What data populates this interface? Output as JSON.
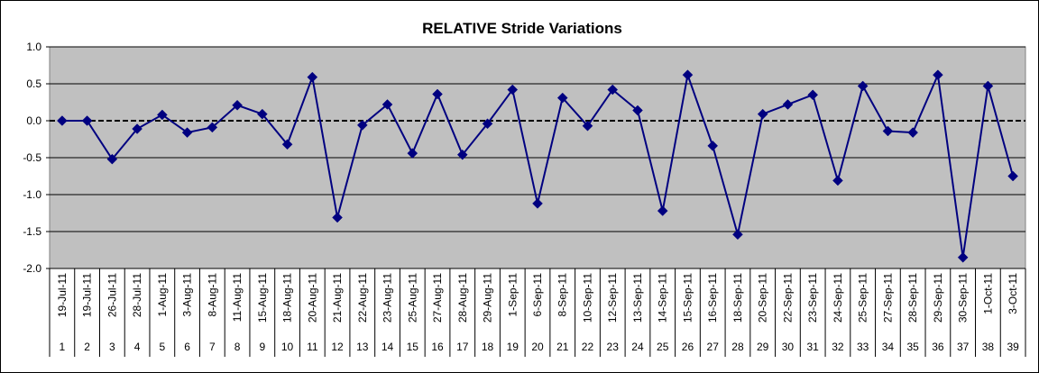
{
  "chart_data": {
    "type": "line",
    "title": "RELATIVE Stride Variations",
    "xlabel": "",
    "ylabel": "",
    "ylim": [
      -2.0,
      1.0
    ],
    "y_ticks": [
      "1.0",
      "0.5",
      "0.0",
      "-0.5",
      "-1.0",
      "-1.5",
      "-2.0"
    ],
    "y_tick_values": [
      1.0,
      0.5,
      0.0,
      -0.5,
      -1.0,
      -1.5,
      -2.0
    ],
    "grid": true,
    "legend": "none",
    "colors": {
      "plot_background": "#c0c0c0",
      "series": "#000080",
      "gridline": "#000000"
    },
    "marker": "diamond",
    "dates": [
      "19-Jul-11",
      "19-Jul-11",
      "26-Jul-11",
      "28-Jul-11",
      "1-Aug-11",
      "3-Aug-11",
      "8-Aug-11",
      "11-Aug-11",
      "15-Aug-11",
      "18-Aug-11",
      "20-Aug-11",
      "21-Aug-11",
      "22-Aug-11",
      "23-Aug-11",
      "25-Aug-11",
      "27-Aug-11",
      "28-Aug-11",
      "29-Aug-11",
      "1-Sep-11",
      "6-Sep-11",
      "8-Sep-11",
      "10-Sep-11",
      "12-Sep-11",
      "13-Sep-11",
      "14-Sep-11",
      "15-Sep-11",
      "16-Sep-11",
      "18-Sep-11",
      "20-Sep-11",
      "22-Sep-11",
      "23-Sep-11",
      "24-Sep-11",
      "25-Sep-11",
      "27-Sep-11",
      "28-Sep-11",
      "29-Sep-11",
      "30-Sep-11",
      "1-Oct-11",
      "3-Oct-11"
    ],
    "categories": [
      "1",
      "2",
      "3",
      "4",
      "5",
      "6",
      "7",
      "8",
      "9",
      "10",
      "11",
      "12",
      "13",
      "14",
      "15",
      "16",
      "17",
      "18",
      "19",
      "20",
      "21",
      "22",
      "23",
      "24",
      "25",
      "26",
      "27",
      "28",
      "29",
      "30",
      "31",
      "32",
      "33",
      "34",
      "35",
      "36",
      "37",
      "38",
      "39"
    ],
    "series": [
      {
        "values": [
          0.0,
          0.0,
          -0.52,
          -0.11,
          0.08,
          -0.16,
          -0.09,
          0.21,
          0.09,
          -0.32,
          0.59,
          -1.31,
          -0.06,
          0.22,
          -0.44,
          0.36,
          -0.46,
          -0.04,
          0.42,
          -1.12,
          0.31,
          -0.07,
          0.42,
          0.14,
          -1.22,
          0.62,
          -0.34,
          -1.54,
          0.09,
          0.22,
          0.35,
          -0.81,
          0.47,
          -0.14,
          -0.16,
          0.62,
          -1.85,
          0.47,
          -0.75
        ]
      }
    ]
  }
}
